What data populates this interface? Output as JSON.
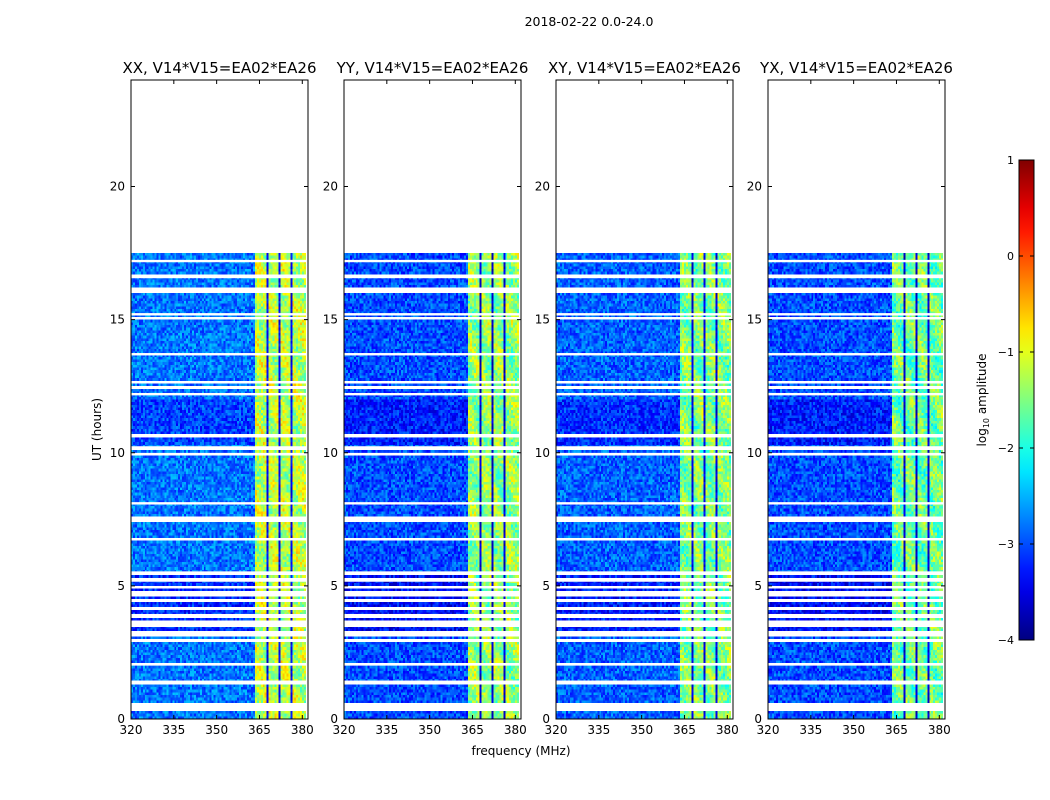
{
  "suptitle": "2018-02-22 0.0-24.0",
  "colors": {
    "background": "#ffffff",
    "axis": "#000000",
    "flag": "#ffffff"
  },
  "chart_data": [
    {
      "type": "heatmap",
      "title": "XX, V14*V15=EA02*EA26",
      "xlabel": "",
      "ylabel": "UT (hours)",
      "xlim": [
        320,
        382
      ],
      "ylim": [
        0,
        24
      ],
      "xticks": [
        "320",
        "335",
        "350",
        "365",
        "380"
      ],
      "yticks": [
        "0",
        "5",
        "10",
        "15",
        "20"
      ],
      "level": {
        "base": -2.8,
        "band": -1.2
      }
    },
    {
      "type": "heatmap",
      "title": "YY, V14*V15=EA02*EA26",
      "xlabel": "frequency (MHz)",
      "ylabel": "",
      "xlim": [
        320,
        382
      ],
      "ylim": [
        0,
        24
      ],
      "xticks": [
        "320",
        "335",
        "350",
        "365",
        "380"
      ],
      "yticks": [
        "0",
        "5",
        "10",
        "15",
        "20"
      ],
      "level": {
        "base": -3.0,
        "band": -1.4
      }
    },
    {
      "type": "heatmap",
      "title": "XY, V14*V15=EA02*EA26",
      "xlabel": "",
      "ylabel": "",
      "xlim": [
        320,
        382
      ],
      "ylim": [
        0,
        24
      ],
      "xticks": [
        "320",
        "335",
        "350",
        "365",
        "380"
      ],
      "yticks": [
        "0",
        "5",
        "10",
        "15",
        "20"
      ],
      "level": {
        "base": -2.9,
        "band": -1.5
      }
    },
    {
      "type": "heatmap",
      "title": "YX, V14*V15=EA02*EA26",
      "xlabel": "",
      "ylabel": "",
      "xlim": [
        320,
        382
      ],
      "ylim": [
        0,
        24
      ],
      "xticks": [
        "320",
        "335",
        "350",
        "365",
        "380"
      ],
      "yticks": [
        "0",
        "5",
        "10",
        "15",
        "20"
      ],
      "level": {
        "base": -3.0,
        "band": -1.6
      }
    }
  ],
  "data_extent": {
    "time_end_hours": 17.5,
    "band_start_mhz": 363.5,
    "band_end_mhz": 381.5,
    "band_gaps_mhz": [
      368.0,
      372.2,
      376.4
    ]
  },
  "flagged_rows_hours": [
    0.38,
    0.42,
    0.5,
    0.55,
    1.4,
    2.05,
    2.95,
    3.2,
    3.5,
    3.62,
    3.9,
    4.15,
    4.45,
    4.7,
    4.95,
    5.2,
    5.5,
    6.75,
    7.5,
    8.1,
    9.95,
    10.2,
    10.62,
    12.2,
    12.45,
    12.65,
    13.7,
    15.05,
    15.2,
    16.05,
    16.15,
    16.6,
    17.2
  ],
  "colorbar": {
    "label": "log$_{10}$ amplitude",
    "label_text": "log",
    "label_sub": "10",
    "label_rest": " amplitude",
    "range": [
      -4,
      1
    ],
    "ticks": [
      "1",
      "0",
      "−1",
      "−2",
      "−3",
      "−4"
    ]
  }
}
